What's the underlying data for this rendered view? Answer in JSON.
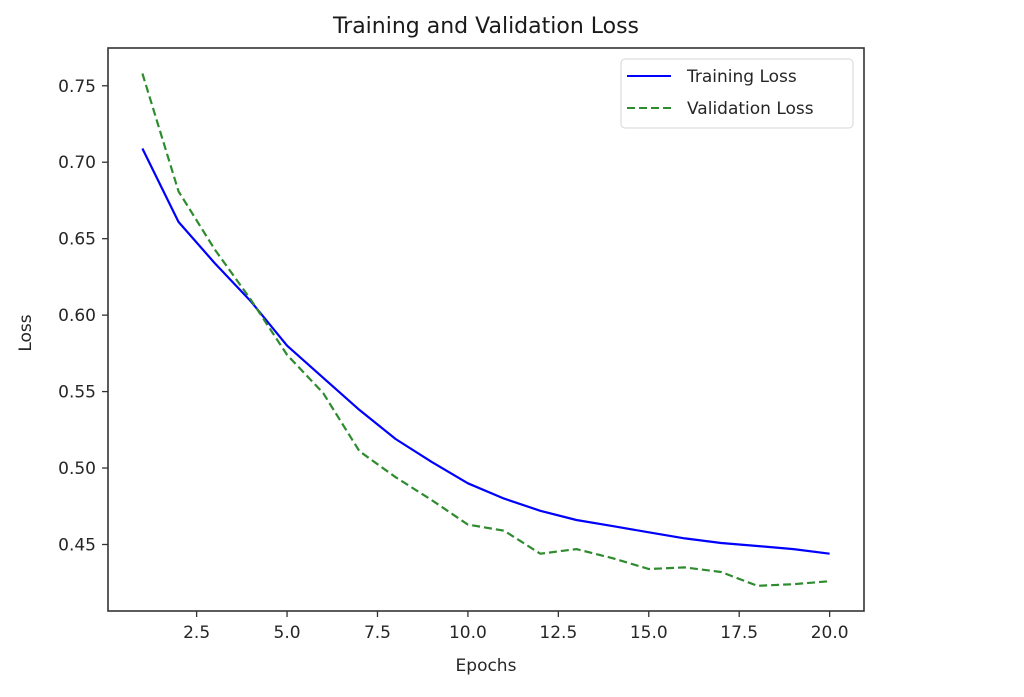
{
  "chart_data": {
    "type": "line",
    "title": "Training and Validation Loss",
    "xlabel": "Epochs",
    "ylabel": "Loss",
    "xlim": [
      0.05,
      20.95
    ],
    "ylim": [
      0.4065,
      0.7747
    ],
    "xticks": [
      2.5,
      5.0,
      7.5,
      10.0,
      12.5,
      15.0,
      17.5,
      20.0
    ],
    "xtick_labels": [
      "2.5",
      "5.0",
      "7.5",
      "10.0",
      "12.5",
      "15.0",
      "17.5",
      "20.0"
    ],
    "yticks": [
      0.45,
      0.5,
      0.55,
      0.6,
      0.65,
      0.7,
      0.75
    ],
    "ytick_labels": [
      "0.45",
      "0.50",
      "0.55",
      "0.60",
      "0.65",
      "0.70",
      "0.75"
    ],
    "grid": false,
    "legend_position": "top-right",
    "x": [
      1,
      2,
      3,
      4,
      5,
      6,
      7,
      8,
      9,
      10,
      11,
      12,
      13,
      14,
      15,
      16,
      17,
      18,
      19,
      20
    ],
    "series": [
      {
        "name": "Training Loss",
        "color": "#0000ff",
        "style": "solid",
        "values": [
          0.709,
          0.661,
          0.634,
          0.609,
          0.58,
          0.559,
          0.538,
          0.519,
          0.504,
          0.49,
          0.48,
          0.472,
          0.466,
          0.462,
          0.458,
          0.454,
          0.451,
          0.449,
          0.447,
          0.444
        ]
      },
      {
        "name": "Validation Loss",
        "color": "#2e8b2e",
        "style": "dashed",
        "values": [
          0.758,
          0.681,
          0.643,
          0.61,
          0.574,
          0.549,
          0.511,
          0.494,
          0.479,
          0.463,
          0.459,
          0.444,
          0.447,
          0.441,
          0.434,
          0.435,
          0.432,
          0.423,
          0.424,
          0.426
        ]
      }
    ]
  }
}
